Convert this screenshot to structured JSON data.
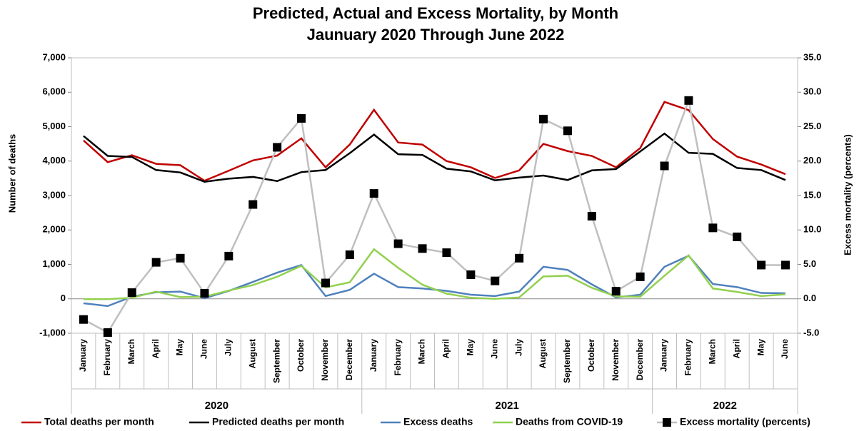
{
  "chart_data": {
    "type": "line",
    "title": "Predicted, Actual and Excess Mortality, by Month",
    "subtitle": "Jaunuary 2020 Through June 2022",
    "y_label": "Number of deaths",
    "y2_label": "Excess mortality (percents)",
    "categories": [
      "January",
      "February",
      "March",
      "April",
      "May",
      "June",
      "July",
      "August",
      "September",
      "October",
      "November",
      "December",
      "January",
      "February",
      "March",
      "April",
      "May",
      "June",
      "July",
      "August",
      "September",
      "October",
      "November",
      "December",
      "January",
      "February",
      "March",
      "April",
      "May",
      "June"
    ],
    "groups": [
      "2020",
      "2021",
      "2022"
    ],
    "ylim": [
      -1000,
      7000
    ],
    "yticks": [
      {
        "value": -1000,
        "label": "-1,000"
      },
      0,
      {
        "value": 1000,
        "label": "1,000"
      },
      {
        "value": 2000,
        "label": "2,000"
      },
      {
        "value": 3000,
        "label": "3,000"
      },
      {
        "value": 4000,
        "label": "4,000"
      },
      {
        "value": 5000,
        "label": "5,000"
      },
      {
        "value": 6000,
        "label": "6,000"
      },
      {
        "value": 7000,
        "label": "7,000"
      }
    ],
    "y2lim": [
      -5,
      35
    ],
    "y2ticks": [
      {
        "value": -5,
        "label": "-5.0"
      },
      {
        "value": 0,
        "label": "0.0"
      },
      {
        "value": 5,
        "label": "5.0"
      },
      {
        "value": 10,
        "label": "10.0"
      },
      {
        "value": 15,
        "label": "15.0"
      },
      {
        "value": 20,
        "label": "20.0"
      },
      {
        "value": 25,
        "label": "25.0"
      },
      {
        "value": 30,
        "label": "30.0"
      },
      {
        "value": 35,
        "label": "35.0"
      }
    ],
    "series": [
      {
        "name": "Total deaths per month",
        "color": "#c00000",
        "values": [
          4600,
          3970,
          4170,
          3920,
          3880,
          3430,
          3720,
          4020,
          4160,
          4660,
          3820,
          4480,
          5490,
          4540,
          4480,
          4000,
          3820,
          3510,
          3730,
          4500,
          4290,
          4150,
          3820,
          4380,
          5720,
          5480,
          4640,
          4130,
          3900,
          3620
        ]
      },
      {
        "name": "Predicted deaths per month",
        "color": "#000000",
        "values": [
          4730,
          4150,
          4120,
          3740,
          3670,
          3400,
          3490,
          3540,
          3420,
          3680,
          3740,
          4230,
          4770,
          4200,
          4180,
          3780,
          3700,
          3440,
          3520,
          3580,
          3450,
          3730,
          3770,
          4280,
          4800,
          4240,
          4210,
          3800,
          3740,
          3450
        ]
      },
      {
        "name": "Excess deaths",
        "color": "#4f81bd",
        "values": [
          -130,
          -210,
          60,
          190,
          210,
          20,
          230,
          490,
          760,
          980,
          80,
          260,
          730,
          340,
          300,
          230,
          120,
          80,
          210,
          930,
          840,
          420,
          40,
          120,
          930,
          1250,
          430,
          340,
          170,
          160
        ]
      },
      {
        "name": "Deaths from COVID-19",
        "color": "#92d050",
        "values": [
          -10,
          -10,
          30,
          210,
          50,
          60,
          240,
          400,
          640,
          960,
          330,
          480,
          1440,
          900,
          410,
          150,
          30,
          0,
          40,
          650,
          670,
          320,
          70,
          60,
          670,
          1260,
          300,
          200,
          80,
          130
        ]
      },
      {
        "name": "Excess mortality (percents)",
        "color": "#bfbfbf",
        "marker_color": "#000000",
        "axis": "y2",
        "values": [
          -3.0,
          -4.9,
          0.9,
          5.3,
          5.9,
          0.8,
          6.2,
          13.7,
          22.0,
          26.2,
          2.3,
          6.4,
          15.3,
          8.0,
          7.3,
          6.7,
          3.5,
          2.6,
          5.9,
          26.1,
          24.4,
          12.0,
          1.1,
          3.2,
          19.3,
          28.8,
          10.3,
          9.0,
          4.9,
          4.9
        ]
      }
    ]
  }
}
